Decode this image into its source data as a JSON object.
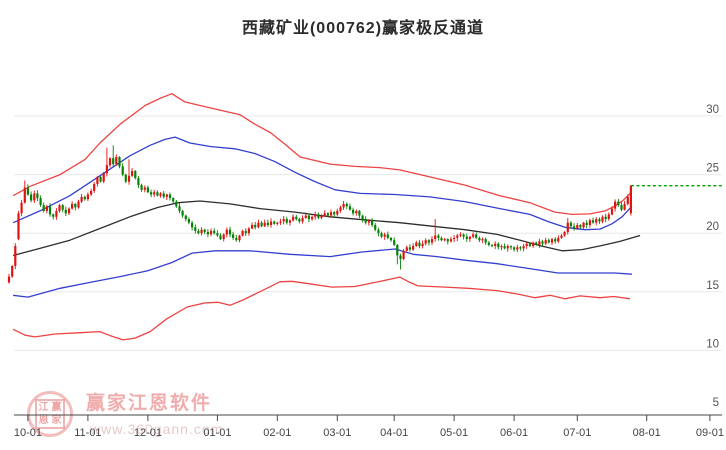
{
  "header": {
    "title": "西藏矿业(000762)赢家极反通道"
  },
  "watermark": {
    "brand_text": "赢家江恩软件",
    "url_text": "www.360gann.com",
    "seal_chars": [
      "江",
      "赢",
      "恩",
      "家"
    ]
  },
  "chart_data": {
    "type": "candlestick",
    "title": "西藏矿业(000762)赢家极反通道",
    "grid": true,
    "legend": "none",
    "y_axis": {
      "side": "right",
      "ticks": [
        30,
        25,
        20,
        15,
        10,
        5
      ],
      "range": [
        5,
        33.5
      ]
    },
    "x_axis": {
      "labels": [
        "10-01",
        "11-01",
        "12-01",
        "01-01",
        "02-01",
        "03-01",
        "04-01",
        "05-01",
        "06-01",
        "07-01",
        "08-01",
        "09-01"
      ],
      "anchor_days": [
        6,
        25,
        44,
        66,
        85,
        104,
        122,
        141,
        160,
        180,
        202,
        222
      ]
    },
    "candles": {
      "first_open": 15.8,
      "closes": [
        16.3,
        17.2,
        18.9,
        21.7,
        22.6,
        23.9,
        23.3,
        22.8,
        23.4,
        23.0,
        22.4,
        21.9,
        22.3,
        21.6,
        21.4,
        21.9,
        22.4,
        22.0,
        21.7,
        22.1,
        22.5,
        22.2,
        22.7,
        23.1,
        22.9,
        23.3,
        23.6,
        24.2,
        24.8,
        24.4,
        25.1,
        25.8,
        26.4,
        25.9,
        26.5,
        25.7,
        25.0,
        24.4,
        24.9,
        25.3,
        24.7,
        24.1,
        23.7,
        23.9,
        23.5,
        23.3,
        23.5,
        23.2,
        23.4,
        23.1,
        23.3,
        23.0,
        22.7,
        22.3,
        21.9,
        21.5,
        21.2,
        20.9,
        20.5,
        20.2,
        20.0,
        20.3,
        20.1,
        19.9,
        20.2,
        20.0,
        19.8,
        19.5,
        19.9,
        20.3,
        19.9,
        19.6,
        19.4,
        19.8,
        20.2,
        20.0,
        20.4,
        20.7,
        20.5,
        20.9,
        20.6,
        20.9,
        20.7,
        21.0,
        20.8,
        20.9,
        21.0,
        21.2,
        20.9,
        21.1,
        21.4,
        21.2,
        21.0,
        21.3,
        21.5,
        21.2,
        21.4,
        21.6,
        21.3,
        21.5,
        21.7,
        21.5,
        21.8,
        21.6,
        21.9,
        22.2,
        22.5,
        22.3,
        22.0,
        21.7,
        21.9,
        21.5,
        21.2,
        20.9,
        21.1,
        20.7,
        20.3,
        20.0,
        19.7,
        19.9,
        19.6,
        19.4,
        19.0,
        18.1,
        17.8,
        18.5,
        18.8,
        18.6,
        18.9,
        19.2,
        18.9,
        19.1,
        19.4,
        19.2,
        19.5,
        19.8,
        19.6,
        19.4,
        19.5,
        19.3,
        19.5,
        19.6,
        19.8,
        19.9,
        19.7,
        19.5,
        19.7,
        19.9,
        19.6,
        19.4,
        19.5,
        19.2,
        19.0,
        18.9,
        19.1,
        18.8,
        18.9,
        18.7,
        18.9,
        18.8,
        18.6,
        18.8,
        18.7,
        18.9,
        19.1,
        18.9,
        19.2,
        19.0,
        19.3,
        19.1,
        19.4,
        19.2,
        19.5,
        19.3,
        19.6,
        19.8,
        20.1,
        20.9,
        20.6,
        20.4,
        20.7,
        20.5,
        20.9,
        20.7,
        21.1,
        20.9,
        21.2,
        21.0,
        21.4,
        21.2,
        21.6,
        22.1,
        22.7,
        22.4,
        22.0,
        22.5,
        23.1,
        24.05
      ],
      "overrides": {
        "3": {
          "o": 19.5
        },
        "5": {
          "h": 24.5
        },
        "31": {
          "h": 27.3
        },
        "33": {
          "h": 27.5
        },
        "38": {
          "h": 26.3
        },
        "106": {
          "h": 22.75
        },
        "123": {
          "l": 17.35
        },
        "124": {
          "l": 16.9
        },
        "135": {
          "h": 21.2
        },
        "177": {
          "h": 21.3
        },
        "196": {
          "h": 23.3
        },
        "197": {
          "o": 21.7,
          "h": 24.1,
          "l": 21.5,
          "c": 24.05
        }
      }
    },
    "channel_lines": {
      "upper_red": {
        "color": "#ee4343",
        "points": [
          [
            1.3,
            23.2
          ],
          [
            6.7,
            24.0
          ],
          [
            16.2,
            25.0
          ],
          [
            24.1,
            26.3
          ],
          [
            28.8,
            27.7
          ],
          [
            35.2,
            29.3
          ],
          [
            43.1,
            30.9
          ],
          [
            47.8,
            31.5
          ],
          [
            51.6,
            31.9
          ],
          [
            55.7,
            31.2
          ],
          [
            60.5,
            30.9
          ],
          [
            66.8,
            30.5
          ],
          [
            73.2,
            30.1
          ],
          [
            77.9,
            29.3
          ],
          [
            82.7,
            28.6
          ],
          [
            87.4,
            27.6
          ],
          [
            92.2,
            26.5
          ],
          [
            96.9,
            26.2
          ],
          [
            101.7,
            25.9
          ],
          [
            109.6,
            25.7
          ],
          [
            117.5,
            25.6
          ],
          [
            123.8,
            25.4
          ],
          [
            133.3,
            24.8
          ],
          [
            144.4,
            24.1
          ],
          [
            155.5,
            23.2
          ],
          [
            165.0,
            22.6
          ],
          [
            172.9,
            21.8
          ],
          [
            178.3,
            21.6
          ],
          [
            184.0,
            21.65
          ],
          [
            188.8,
            21.9
          ],
          [
            191.9,
            22.3
          ],
          [
            194.5,
            22.8
          ],
          [
            196.7,
            23.4
          ]
        ]
      },
      "upper_blue": {
        "color": "#3340cf",
        "points": [
          [
            1.3,
            20.9
          ],
          [
            9.8,
            21.9
          ],
          [
            19.3,
            23.2
          ],
          [
            28.8,
            24.9
          ],
          [
            38.3,
            26.6
          ],
          [
            44.7,
            27.5
          ],
          [
            49.4,
            28.0
          ],
          [
            52.6,
            28.2
          ],
          [
            57.3,
            27.7
          ],
          [
            63.7,
            27.4
          ],
          [
            71.6,
            27.2
          ],
          [
            77.9,
            26.8
          ],
          [
            84.3,
            26.1
          ],
          [
            90.6,
            25.2
          ],
          [
            96.9,
            24.4
          ],
          [
            103.3,
            23.7
          ],
          [
            111.2,
            23.4
          ],
          [
            122.3,
            23.3
          ],
          [
            133.3,
            23.1
          ],
          [
            144.4,
            22.7
          ],
          [
            155.5,
            22.1
          ],
          [
            165.0,
            21.6
          ],
          [
            170.7,
            21.0
          ],
          [
            176.1,
            20.5
          ],
          [
            182.4,
            20.3
          ],
          [
            187.2,
            20.35
          ],
          [
            191.0,
            20.8
          ],
          [
            194.2,
            21.4
          ],
          [
            197.3,
            22.3
          ]
        ]
      },
      "middle_black": {
        "color": "#2e2e2e",
        "points": [
          [
            1.3,
            18.1
          ],
          [
            9.8,
            18.7
          ],
          [
            19.3,
            19.4
          ],
          [
            28.8,
            20.4
          ],
          [
            38.3,
            21.4
          ],
          [
            47.2,
            22.2
          ],
          [
            53.5,
            22.6
          ],
          [
            60.5,
            22.75
          ],
          [
            70.0,
            22.5
          ],
          [
            79.5,
            22.1
          ],
          [
            90.6,
            21.8
          ],
          [
            101.7,
            21.4
          ],
          [
            114.3,
            21.1
          ],
          [
            123.8,
            20.9
          ],
          [
            134.0,
            20.6
          ],
          [
            144.4,
            20.3
          ],
          [
            154.6,
            19.9
          ],
          [
            161.9,
            19.4
          ],
          [
            168.8,
            18.9
          ],
          [
            175.2,
            18.5
          ],
          [
            181.5,
            18.6
          ],
          [
            187.8,
            18.95
          ],
          [
            193.5,
            19.3
          ],
          [
            199.9,
            19.8
          ]
        ]
      },
      "lower_blue": {
        "color": "#3340cf",
        "points": [
          [
            1.3,
            14.7
          ],
          [
            6.0,
            14.55
          ],
          [
            16.2,
            15.3
          ],
          [
            25.7,
            15.8
          ],
          [
            35.2,
            16.3
          ],
          [
            44.0,
            16.8
          ],
          [
            51.6,
            17.5
          ],
          [
            58.0,
            18.3
          ],
          [
            65.3,
            18.5
          ],
          [
            76.3,
            18.5
          ],
          [
            89.0,
            18.2
          ],
          [
            101.7,
            18.0
          ],
          [
            111.8,
            18.4
          ],
          [
            122.3,
            18.65
          ],
          [
            128.0,
            18.2
          ],
          [
            135.6,
            18.0
          ],
          [
            144.4,
            17.7
          ],
          [
            154.6,
            17.4
          ],
          [
            164.4,
            17.0
          ],
          [
            173.9,
            16.6
          ],
          [
            184.0,
            16.6
          ],
          [
            191.9,
            16.6
          ],
          [
            197.3,
            16.5
          ]
        ]
      },
      "lower_red": {
        "color": "#ee4343",
        "points": [
          [
            1.3,
            11.8
          ],
          [
            5.1,
            11.3
          ],
          [
            8.2,
            11.15
          ],
          [
            14.6,
            11.4
          ],
          [
            21.9,
            11.5
          ],
          [
            28.8,
            11.6
          ],
          [
            32.6,
            11.2
          ],
          [
            36.1,
            10.9
          ],
          [
            39.9,
            11.05
          ],
          [
            44.7,
            11.6
          ],
          [
            50.0,
            12.7
          ],
          [
            56.4,
            13.7
          ],
          [
            62.1,
            14.05
          ],
          [
            66.2,
            14.1
          ],
          [
            70.0,
            13.85
          ],
          [
            74.1,
            14.3
          ],
          [
            81.7,
            15.3
          ],
          [
            85.8,
            15.85
          ],
          [
            89.6,
            15.9
          ],
          [
            96.0,
            15.65
          ],
          [
            102.3,
            15.4
          ],
          [
            109.6,
            15.45
          ],
          [
            116.9,
            15.85
          ],
          [
            123.8,
            16.25
          ],
          [
            127.0,
            15.8
          ],
          [
            129.5,
            15.5
          ],
          [
            138.1,
            15.4
          ],
          [
            145.4,
            15.3
          ],
          [
            154.6,
            15.1
          ],
          [
            161.2,
            14.8
          ],
          [
            166.6,
            14.5
          ],
          [
            171.4,
            14.7
          ],
          [
            176.1,
            14.4
          ],
          [
            180.9,
            14.65
          ],
          [
            187.2,
            14.5
          ],
          [
            191.6,
            14.6
          ],
          [
            196.7,
            14.4
          ]
        ]
      }
    },
    "projection_line": {
      "value": 24.05,
      "color": "#00a000",
      "style": "dashed"
    },
    "colors": {
      "up": "#e01212",
      "down": "#058205",
      "grid": "#e8e8e8",
      "axis": "#555555",
      "label": "#444444"
    }
  }
}
